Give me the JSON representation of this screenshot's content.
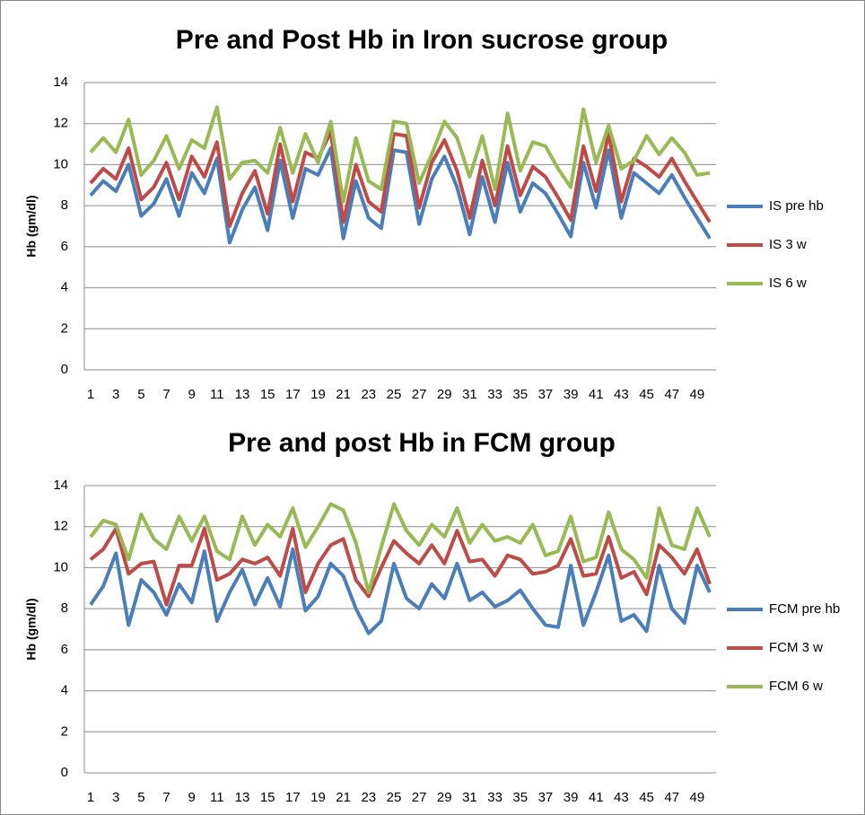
{
  "chart_data": [
    {
      "type": "line",
      "title": "Pre and Post Hb in Iron sucrose group",
      "y_label": "Hb (gm/dl)",
      "categories": [
        1,
        null,
        3,
        null,
        5,
        null,
        7,
        null,
        9,
        null,
        11,
        null,
        13,
        null,
        15,
        null,
        17,
        null,
        19,
        null,
        21,
        null,
        23,
        null,
        25,
        null,
        27,
        null,
        29,
        null,
        31,
        null,
        33,
        null,
        35,
        null,
        37,
        null,
        39,
        null,
        41,
        null,
        43,
        null,
        45,
        null,
        47,
        null,
        49,
        null
      ],
      "ylim": [
        0,
        14
      ],
      "yticks": [
        0,
        2,
        4,
        6,
        8,
        10,
        12,
        14
      ],
      "grid": true,
      "legend": "right",
      "series": [
        {
          "name": "IS pre hb",
          "color": "#4a7ebb",
          "values": [
            8.5,
            9.2,
            8.7,
            10.0,
            7.5,
            8.1,
            9.3,
            7.5,
            9.6,
            8.6,
            10.3,
            6.2,
            7.8,
            8.9,
            6.8,
            10.2,
            7.4,
            9.8,
            9.5,
            10.8,
            6.4,
            9.2,
            7.4,
            6.9,
            10.7,
            10.6,
            7.1,
            9.3,
            10.4,
            8.9,
            6.6,
            9.4,
            7.2,
            10.1,
            7.7,
            9.1,
            8.6,
            7.6,
            6.5,
            10.1,
            7.9,
            10.7,
            7.4,
            9.6,
            9.1,
            8.6,
            9.5,
            8.4,
            7.4,
            6.4
          ]
        },
        {
          "name": "IS 3 w",
          "color": "#be4b48",
          "values": [
            9.1,
            9.8,
            9.3,
            10.8,
            8.3,
            8.9,
            10.1,
            8.3,
            10.4,
            9.4,
            11.1,
            7.0,
            8.6,
            9.7,
            7.6,
            11.0,
            8.2,
            10.6,
            10.3,
            11.6,
            7.2,
            10.0,
            8.2,
            7.7,
            11.5,
            11.4,
            7.9,
            10.1,
            11.2,
            9.7,
            7.4,
            10.2,
            8.0,
            10.9,
            8.5,
            9.9,
            9.4,
            8.4,
            7.3,
            10.9,
            8.7,
            11.5,
            8.2,
            10.3,
            9.9,
            9.4,
            10.3,
            9.2,
            8.2,
            7.2
          ]
        },
        {
          "name": "IS 6 w",
          "color": "#98b954",
          "values": [
            10.6,
            11.3,
            10.6,
            12.2,
            9.5,
            10.2,
            11.4,
            9.8,
            11.2,
            10.8,
            12.8,
            9.3,
            10.1,
            10.2,
            9.6,
            11.8,
            9.6,
            11.5,
            10.1,
            12.1,
            8.2,
            11.3,
            9.2,
            8.8,
            12.1,
            12.0,
            9.1,
            10.5,
            12.1,
            11.3,
            9.4,
            11.4,
            8.8,
            12.5,
            9.7,
            11.1,
            10.9,
            9.8,
            8.9,
            12.7,
            10.1,
            11.9,
            9.8,
            10.2,
            11.4,
            10.5,
            11.3,
            10.6,
            9.5,
            9.6
          ]
        }
      ]
    },
    {
      "type": "line",
      "title": "Pre and post Hb in FCM group",
      "y_label": "Hb (gm/dl)",
      "categories": [
        1,
        null,
        3,
        null,
        5,
        null,
        7,
        null,
        9,
        null,
        11,
        null,
        13,
        null,
        15,
        null,
        17,
        null,
        19,
        null,
        21,
        null,
        23,
        null,
        25,
        null,
        27,
        null,
        29,
        null,
        31,
        null,
        33,
        null,
        35,
        null,
        37,
        null,
        39,
        null,
        41,
        null,
        43,
        null,
        45,
        null,
        47,
        null,
        49,
        null
      ],
      "ylim": [
        0,
        14
      ],
      "yticks": [
        0,
        2,
        4,
        6,
        8,
        10,
        12,
        14
      ],
      "grid": true,
      "legend": "right",
      "series": [
        {
          "name": "FCM pre hb",
          "color": "#4a7ebb",
          "values": [
            8.2,
            9.1,
            10.7,
            7.2,
            9.4,
            8.8,
            7.7,
            9.2,
            8.3,
            10.8,
            7.4,
            8.8,
            9.9,
            8.2,
            9.5,
            8.1,
            10.9,
            7.9,
            8.6,
            10.2,
            9.6,
            8.0,
            6.8,
            7.4,
            10.2,
            8.5,
            8.0,
            9.2,
            8.5,
            10.2,
            8.4,
            8.8,
            8.1,
            8.4,
            8.9,
            8.0,
            7.2,
            7.1,
            10.1,
            7.2,
            8.8,
            10.6,
            7.4,
            7.7,
            6.9,
            10.1,
            8.0,
            7.3,
            10.1,
            8.8
          ]
        },
        {
          "name": "FCM 3 w",
          "color": "#be4b48",
          "values": [
            10.4,
            10.9,
            11.9,
            9.7,
            10.2,
            10.3,
            8.2,
            10.1,
            10.1,
            11.9,
            9.4,
            9.7,
            10.4,
            10.2,
            10.5,
            9.6,
            11.9,
            8.8,
            10.2,
            11.1,
            11.4,
            9.4,
            8.6,
            10.0,
            11.3,
            10.7,
            10.2,
            11.1,
            10.2,
            11.8,
            10.3,
            10.4,
            9.6,
            10.6,
            10.4,
            9.7,
            9.8,
            10.1,
            11.4,
            9.6,
            9.7,
            11.5,
            9.5,
            9.8,
            8.7,
            11.1,
            10.5,
            9.7,
            10.9,
            9.2
          ]
        },
        {
          "name": "FCM 6 w",
          "color": "#98b954",
          "values": [
            11.5,
            12.3,
            12.1,
            10.4,
            12.6,
            11.4,
            10.9,
            12.5,
            11.3,
            12.5,
            10.8,
            10.4,
            12.5,
            11.1,
            12.1,
            11.5,
            12.9,
            11.0,
            12.0,
            13.1,
            12.8,
            11.2,
            8.8,
            11.0,
            13.1,
            11.8,
            11.1,
            12.1,
            11.5,
            12.9,
            11.2,
            12.1,
            11.3,
            11.5,
            11.2,
            12.1,
            10.6,
            10.8,
            12.5,
            10.3,
            10.5,
            12.7,
            10.9,
            10.4,
            9.5,
            12.9,
            11.1,
            10.9,
            12.9,
            11.5
          ]
        }
      ]
    }
  ]
}
